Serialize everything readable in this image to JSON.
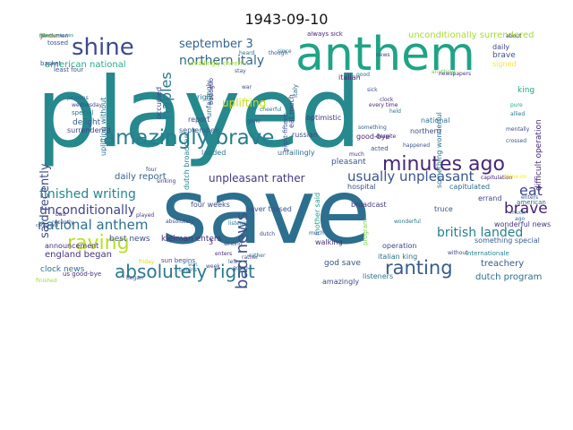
{
  "title": "1943-09-10",
  "words": [
    {
      "text": "played",
      "color": "#26898e",
      "vertical": false
    },
    {
      "text": "save",
      "color": "#2d6f8e",
      "vertical": false
    },
    {
      "text": "anthem",
      "color": "#20a386",
      "vertical": false
    },
    {
      "text": "minutes ago",
      "color": "#482677",
      "vertical": false
    },
    {
      "text": "amazingly brave",
      "color": "#287d8e",
      "vertical": false
    },
    {
      "text": "absolutely right",
      "color": "#2a788e",
      "vertical": false
    },
    {
      "text": "ranting",
      "color": "#375b8d",
      "vertical": false
    },
    {
      "text": "raving",
      "color": "#b8de29",
      "vertical": false
    },
    {
      "text": "shine",
      "color": "#3e4a89",
      "vertical": false
    },
    {
      "text": "eat",
      "color": "#3f4788",
      "vertical": false
    },
    {
      "text": "brave",
      "color": "#482173",
      "vertical": false
    },
    {
      "text": "national anthem",
      "color": "#2d708e",
      "vertical": false
    },
    {
      "text": "bad news",
      "color": "#3b528b",
      "vertical": true
    },
    {
      "text": "british landed",
      "color": "#26818e",
      "vertical": false
    },
    {
      "text": "usually unpleasant",
      "color": "#3a548c",
      "vertical": false
    },
    {
      "text": "unconditionally",
      "color": "#404688",
      "vertical": false
    },
    {
      "text": "finished writing",
      "color": "#24868e",
      "vertical": false
    },
    {
      "text": "northern italy",
      "color": "#31688e",
      "vertical": false
    },
    {
      "text": "september 3",
      "color": "#33638d",
      "vertical": false
    },
    {
      "text": "naples",
      "color": "#2a788e",
      "vertical": true
    },
    {
      "text": "unconditionally surrendered",
      "color": "#a8db34",
      "vertical": false
    },
    {
      "text": "uplifting",
      "color": "#c8e020",
      "vertical": false
    },
    {
      "text": "said recently",
      "color": "#3e4c8a",
      "vertical": true
    },
    {
      "text": "unpleasant rather",
      "color": "#443983",
      "vertical": false
    },
    {
      "text": "daily report",
      "color": "#34618d",
      "vertical": false
    },
    {
      "text": "american national",
      "color": "#25ab82",
      "vertical": false
    },
    {
      "text": "england began",
      "color": "#46337f",
      "vertical": false
    },
    {
      "text": "clock news",
      "color": "#2c718e",
      "vertical": false
    },
    {
      "text": "best news",
      "color": "#3d4e8a",
      "vertical": false
    },
    {
      "text": "kleiman enters",
      "color": "#46327e",
      "vertical": false
    },
    {
      "text": "dutch program",
      "color": "#2e6f8e",
      "vertical": false
    },
    {
      "text": "treachery",
      "color": "#38588c",
      "vertical": false
    },
    {
      "text": "god save",
      "color": "#3b518b",
      "vertical": false
    },
    {
      "text": "italian king",
      "color": "#2d718e",
      "vertical": false
    },
    {
      "text": "walking",
      "color": "#472d7b",
      "vertical": false
    },
    {
      "text": "operation",
      "color": "#3f4889",
      "vertical": false
    },
    {
      "text": "something special",
      "color": "#355f8d",
      "vertical": false
    },
    {
      "text": "wonderful news",
      "color": "#453781",
      "vertical": false
    },
    {
      "text": "truce",
      "color": "#3a548c",
      "vertical": false
    },
    {
      "text": "errand",
      "color": "#404588",
      "vertical": false
    },
    {
      "text": "american",
      "color": "#31688e",
      "vertical": false
    },
    {
      "text": "capitulated",
      "color": "#2f6b8e",
      "vertical": false
    },
    {
      "text": "pleasant",
      "color": "#39558c",
      "vertical": false
    },
    {
      "text": "hospital",
      "color": "#3a538b",
      "vertical": false
    },
    {
      "text": "good-bye",
      "color": "#482979",
      "vertical": false
    },
    {
      "text": "northern",
      "color": "#3d4d8a",
      "vertical": false
    },
    {
      "text": "national",
      "color": "#2b748e",
      "vertical": false
    },
    {
      "text": "russian",
      "color": "#3e4989",
      "vertical": false
    },
    {
      "text": "optimistic",
      "color": "#453882",
      "vertical": false
    },
    {
      "text": "unfailingly",
      "color": "#2f6c8e",
      "vertical": false
    },
    {
      "text": "september",
      "color": "#38598c",
      "vertical": false
    },
    {
      "text": "delight",
      "color": "#34608d",
      "vertical": false
    },
    {
      "text": "report",
      "color": "#3c4f8a",
      "vertical": false
    },
    {
      "text": "special",
      "color": "#2a768e",
      "vertical": false
    },
    {
      "text": "surrendered",
      "color": "#404387",
      "vertical": false
    },
    {
      "text": "announcement",
      "color": "#472c7a",
      "vertical": false
    },
    {
      "text": "four weeks",
      "color": "#3e4a89",
      "vertical": false
    },
    {
      "text": "never tossed",
      "color": "#3b528b",
      "vertical": false
    },
    {
      "text": "listeners",
      "color": "#2d708e",
      "vertical": false
    },
    {
      "text": "amazingly",
      "color": "#404588",
      "vertical": false
    },
    {
      "text": "us good-bye",
      "color": "#46307e",
      "vertical": false
    },
    {
      "text": "sun begins",
      "color": "#3a538b",
      "vertical": false
    },
    {
      "text": "landed",
      "color": "#2b758e",
      "vertical": false
    },
    {
      "text": "tossed",
      "color": "#3b528b",
      "vertical": false
    },
    {
      "text": "basket",
      "color": "#3e4c8a",
      "vertical": false
    },
    {
      "text": "always sick",
      "color": "#482475",
      "vertical": false
    },
    {
      "text": "daily",
      "color": "#3f4788",
      "vertical": false
    },
    {
      "text": "king",
      "color": "#22a785",
      "vertical": false
    },
    {
      "text": "italian",
      "color": "#482677",
      "vertical": false
    },
    {
      "text": "acted",
      "color": "#3c4f8a",
      "vertical": false
    },
    {
      "text": "rather",
      "color": "#2e6e8e",
      "vertical": false
    },
    {
      "text": "four",
      "color": "#3e4989",
      "vertical": false
    },
    {
      "text": "right",
      "color": "#2a788e",
      "vertical": false
    },
    {
      "text": "broadcast",
      "color": "#453781",
      "vertical": false
    },
    {
      "text": "brave",
      "color": "#3a548c",
      "vertical": false
    },
    {
      "text": "difficult operation",
      "color": "#482878",
      "vertical": true
    },
    {
      "text": "uplifting without",
      "color": "#2c728e",
      "vertical": true
    },
    {
      "text": "unfailingly cheerful",
      "color": "#a0da39",
      "vertical": false
    },
    {
      "text": "dutch broadcast",
      "color": "#26828e",
      "vertical": true
    },
    {
      "text": "badoglio",
      "color": "#443983",
      "vertical": true
    },
    {
      "text": "occupied",
      "color": "#3f4889",
      "vertical": true
    },
    {
      "text": "capitulation",
      "color": "#482173",
      "vertical": false
    },
    {
      "text": "eat much",
      "color": "#404688",
      "vertical": true
    },
    {
      "text": "signed",
      "color": "#fde725",
      "vertical": false
    },
    {
      "text": "mother said",
      "color": "#1f9f88",
      "vertical": true
    },
    {
      "text": "something wonderful",
      "color": "#2d708e",
      "vertical": true
    },
    {
      "text": "unfailingly",
      "color": "#2e6d8e",
      "vertical": true
    },
    {
      "text": "eight-fifteen",
      "color": "#3a538b",
      "vertical": true
    },
    {
      "text": "italy",
      "color": "#31688e",
      "vertical": true
    },
    {
      "text": "program",
      "color": "#7ad151",
      "vertical": true
    },
    {
      "text": "gentlemen",
      "color": "#48186a",
      "vertical": false
    },
    {
      "text": "persons",
      "color": "#31678e",
      "vertical": false
    },
    {
      "text": "wednesday",
      "color": "#3f4788",
      "vertical": false
    },
    {
      "text": "internationale",
      "color": "#25848e",
      "vertical": false
    },
    {
      "text": "began",
      "color": "#3a538b",
      "vertical": false
    },
    {
      "text": "cheerful",
      "color": "#2a778e",
      "vertical": false
    },
    {
      "text": "gone",
      "color": "#3e4989",
      "vertical": false
    },
    {
      "text": "fifteen",
      "color": "#b5de2b",
      "vertical": false
    },
    {
      "text": "enters",
      "color": "#375a8c",
      "vertical": false
    },
    {
      "text": "clock",
      "color": "#46337f",
      "vertical": false
    },
    {
      "text": "heard",
      "color": "#2c718e",
      "vertical": false
    },
    {
      "text": "sick",
      "color": "#3b528b",
      "vertical": false
    },
    {
      "text": "war",
      "color": "#3d4e8a",
      "vertical": false
    },
    {
      "text": "good",
      "color": "#2d708e",
      "vertical": false
    },
    {
      "text": "news",
      "color": "#3f4889",
      "vertical": false
    },
    {
      "text": "every time",
      "color": "#482475",
      "vertical": false
    },
    {
      "text": "held",
      "color": "#2a788e",
      "vertical": false
    },
    {
      "text": "anything",
      "color": "#6ccd5a",
      "vertical": false
    },
    {
      "text": "fifteen minutes",
      "color": "#26828e",
      "vertical": false
    },
    {
      "text": "about",
      "color": "#3e4c8a",
      "vertical": false
    },
    {
      "text": "since",
      "color": "#2c718e",
      "vertical": false
    },
    {
      "text": "least four",
      "color": "#3b528b",
      "vertical": false
    },
    {
      "text": "something",
      "color": "#34608d",
      "vertical": false
    },
    {
      "text": "newspapers",
      "color": "#443983",
      "vertical": false
    },
    {
      "text": "mentally",
      "color": "#3d4e8a",
      "vertical": false
    },
    {
      "text": "pure",
      "color": "#25ab82",
      "vertical": false
    },
    {
      "text": "allied",
      "color": "#2a768e",
      "vertical": false
    },
    {
      "text": "crossed",
      "color": "#38588c",
      "vertical": false
    },
    {
      "text": "shine on",
      "color": "#fde725",
      "vertical": false
    },
    {
      "text": "despite",
      "color": "#482979",
      "vertical": false
    },
    {
      "text": "happened",
      "color": "#3b528b",
      "vertical": false
    },
    {
      "text": "rather",
      "color": "#3e4a89",
      "vertical": false
    },
    {
      "text": "much",
      "color": "#2e6d8e",
      "vertical": false
    },
    {
      "text": "ago",
      "color": "#31688e",
      "vertical": false
    },
    {
      "text": "without",
      "color": "#404588",
      "vertical": false
    },
    {
      "text": "writing",
      "color": "#3b528b",
      "vertical": false
    },
    {
      "text": "listening",
      "color": "#2d708e",
      "vertical": false
    },
    {
      "text": "dutch",
      "color": "#3e4989",
      "vertical": false
    },
    {
      "text": "enters",
      "color": "#482677",
      "vertical": false
    },
    {
      "text": "much",
      "color": "#3b528b",
      "vertical": false
    },
    {
      "text": "3",
      "color": "#46337f",
      "vertical": false
    },
    {
      "text": "friday",
      "color": "#d2e21b",
      "vertical": false
    },
    {
      "text": "begins",
      "color": "#2c718e",
      "vertical": false
    },
    {
      "text": "going",
      "color": "#3d4e8a",
      "vertical": false
    },
    {
      "text": "week",
      "color": "#3e4c8a",
      "vertical": false
    },
    {
      "text": "sun",
      "color": "#2a788e",
      "vertical": false
    },
    {
      "text": "left",
      "color": "#3b528b",
      "vertical": false
    },
    {
      "text": "wonderful",
      "color": "#2a768e",
      "vertical": false
    },
    {
      "text": "recently",
      "color": "#3e4a89",
      "vertical": false
    },
    {
      "text": "continued",
      "color": "#3b528b",
      "vertical": false
    },
    {
      "text": "bad",
      "color": "#482475",
      "vertical": false
    },
    {
      "text": "much",
      "color": "#46337f",
      "vertical": false
    },
    {
      "text": "sinking",
      "color": "#453781",
      "vertical": false
    },
    {
      "text": "though",
      "color": "#3b528b",
      "vertical": false
    },
    {
      "text": "played",
      "color": "#443983",
      "vertical": false
    },
    {
      "text": "absolutely",
      "color": "#3d4e8a",
      "vertical": false
    },
    {
      "text": "finished",
      "color": "#a0da39",
      "vertical": false
    },
    {
      "text": "stay",
      "color": "#3b528b",
      "vertical": false
    }
  ]
}
